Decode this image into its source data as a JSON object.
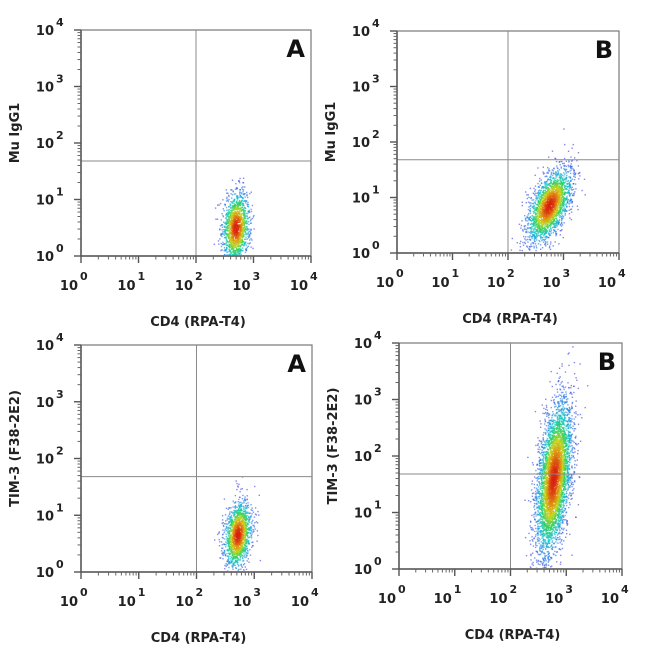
{
  "figure": {
    "description": "Flow cytometry dot plots, CD4 vs isotype control and TIM-3"
  },
  "chart_data": [
    {
      "type": "scatter",
      "panel_label": "A",
      "xlabel": "CD4 (RPA-T4)",
      "ylabel": "Mu IgG1",
      "x_scale": "log10",
      "y_scale": "log10",
      "xlim": [
        1,
        10000
      ],
      "ylim": [
        1,
        10000
      ],
      "x_ticks": [
        {
          "base": "10",
          "exp": "0"
        },
        {
          "base": "10",
          "exp": "1"
        },
        {
          "base": "10",
          "exp": "2"
        },
        {
          "base": "10",
          "exp": "3"
        },
        {
          "base": "10",
          "exp": "4"
        }
      ],
      "y_ticks": [
        {
          "base": "10",
          "exp": "0"
        },
        {
          "base": "10",
          "exp": "1"
        },
        {
          "base": "10",
          "exp": "2"
        },
        {
          "base": "10",
          "exp": "3"
        },
        {
          "base": "10",
          "exp": "4"
        }
      ],
      "quadrant_gate": {
        "x": 100,
        "y": 48
      },
      "population": {
        "center_log10": [
          2.7,
          0.5
        ],
        "sd_log10": [
          0.12,
          0.32
        ],
        "correlation": 0.15,
        "n_events": 1400
      },
      "colormap": [
        "#2a1fd6",
        "#1e78e6",
        "#12c4c8",
        "#2fd15a",
        "#c7d418",
        "#e08a12",
        "#d81f10"
      ],
      "grid": false
    },
    {
      "type": "scatter",
      "panel_label": "B",
      "xlabel": "CD4 (RPA-T4)",
      "ylabel": "Mu IgG1",
      "x_scale": "log10",
      "y_scale": "log10",
      "xlim": [
        1,
        10000
      ],
      "ylim": [
        1,
        10000
      ],
      "x_ticks": [
        {
          "base": "10",
          "exp": "0"
        },
        {
          "base": "10",
          "exp": "1"
        },
        {
          "base": "10",
          "exp": "2"
        },
        {
          "base": "10",
          "exp": "3"
        },
        {
          "base": "10",
          "exp": "4"
        }
      ],
      "y_ticks": [
        {
          "base": "10",
          "exp": "0"
        },
        {
          "base": "10",
          "exp": "1"
        },
        {
          "base": "10",
          "exp": "2"
        },
        {
          "base": "10",
          "exp": "3"
        },
        {
          "base": "10",
          "exp": "4"
        }
      ],
      "quadrant_gate": {
        "x": 100,
        "y": 48
      },
      "population": {
        "center_log10": [
          2.75,
          0.85
        ],
        "sd_log10": [
          0.2,
          0.33
        ],
        "correlation": 0.55,
        "n_events": 2200
      },
      "colormap": [
        "#2a1fd6",
        "#1e78e6",
        "#12c4c8",
        "#2fd15a",
        "#c7d418",
        "#e08a12",
        "#d81f10"
      ],
      "grid": false
    },
    {
      "type": "scatter",
      "panel_label": "A",
      "xlabel": "CD4 (RPA-T4)",
      "ylabel": "TIM-3 (F38-2E2)",
      "x_scale": "log10",
      "y_scale": "log10",
      "xlim": [
        1,
        10000
      ],
      "ylim": [
        1,
        10000
      ],
      "x_ticks": [
        {
          "base": "10",
          "exp": "0"
        },
        {
          "base": "10",
          "exp": "1"
        },
        {
          "base": "10",
          "exp": "2"
        },
        {
          "base": "10",
          "exp": "3"
        },
        {
          "base": "10",
          "exp": "4"
        }
      ],
      "y_ticks": [
        {
          "base": "10",
          "exp": "0"
        },
        {
          "base": "10",
          "exp": "1"
        },
        {
          "base": "10",
          "exp": "2"
        },
        {
          "base": "10",
          "exp": "3"
        },
        {
          "base": "10",
          "exp": "4"
        }
      ],
      "quadrant_gate": {
        "x": 100,
        "y": 48
      },
      "population": {
        "center_log10": [
          2.72,
          0.65
        ],
        "sd_log10": [
          0.12,
          0.3
        ],
        "correlation": 0.25,
        "n_events": 1500
      },
      "colormap": [
        "#2a1fd6",
        "#1e78e6",
        "#12c4c8",
        "#2fd15a",
        "#c7d418",
        "#e08a12",
        "#d81f10"
      ],
      "grid": false
    },
    {
      "type": "scatter",
      "panel_label": "B",
      "xlabel": "CD4 (RPA-T4)",
      "ylabel": "TIM-3 (F38-2E2)",
      "x_scale": "log10",
      "y_scale": "log10",
      "xlim": [
        1,
        10000
      ],
      "ylim": [
        1,
        10000
      ],
      "x_ticks": [
        {
          "base": "10",
          "exp": "0"
        },
        {
          "base": "10",
          "exp": "1"
        },
        {
          "base": "10",
          "exp": "2"
        },
        {
          "base": "10",
          "exp": "3"
        },
        {
          "base": "10",
          "exp": "4"
        }
      ],
      "y_ticks": [
        {
          "base": "10",
          "exp": "0"
        },
        {
          "base": "10",
          "exp": "1"
        },
        {
          "base": "10",
          "exp": "2"
        },
        {
          "base": "10",
          "exp": "3"
        },
        {
          "base": "10",
          "exp": "4"
        }
      ],
      "quadrant_gate": {
        "x": 100,
        "y": 48
      },
      "population": {
        "center_log10": [
          2.78,
          1.6
        ],
        "sd_log10": [
          0.16,
          0.68
        ],
        "correlation": 0.45,
        "n_events": 4200
      },
      "colormap": [
        "#2a1fd6",
        "#1e78e6",
        "#12c4c8",
        "#2fd15a",
        "#c7d418",
        "#e08a12",
        "#d81f10"
      ],
      "grid": false
    }
  ]
}
